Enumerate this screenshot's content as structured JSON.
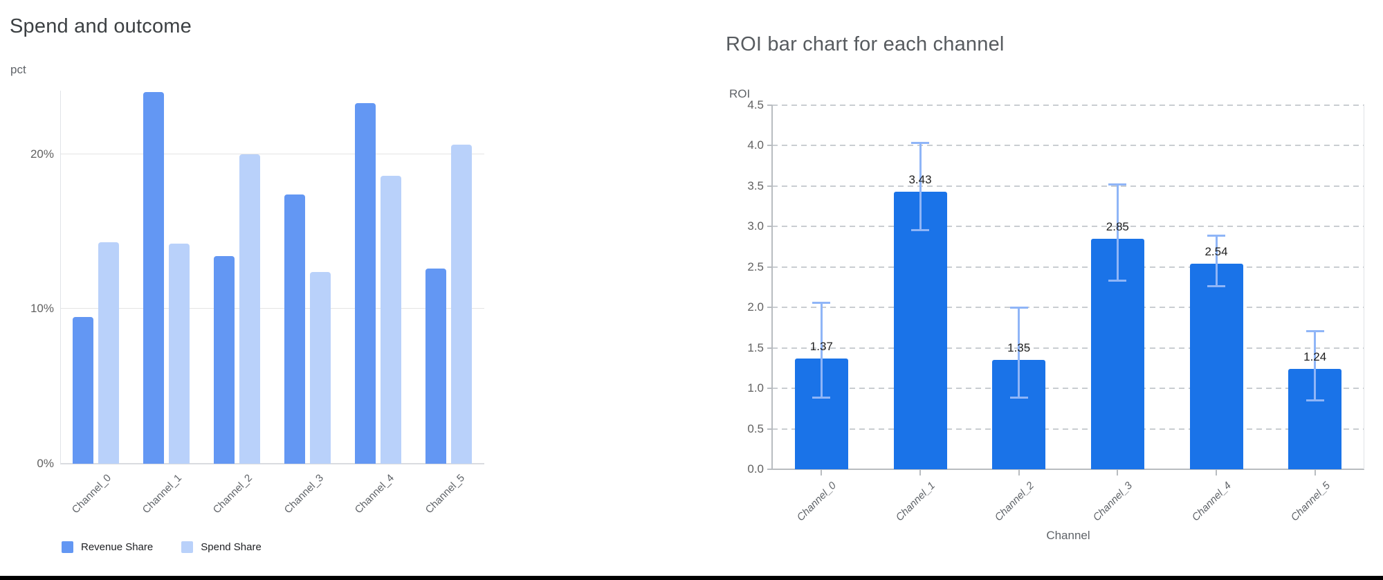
{
  "chart_data": [
    {
      "type": "bar",
      "title": "Spend and outcome",
      "ylabel": "pct",
      "xlabel": "",
      "categories": [
        "Channel_0",
        "Channel_1",
        "Channel_2",
        "Channel_3",
        "Channel_4",
        "Channel_5"
      ],
      "series": [
        {
          "name": "Revenue Share",
          "color": "#6397f3",
          "values": [
            9.5,
            24.0,
            13.4,
            17.4,
            23.3,
            12.6
          ]
        },
        {
          "name": "Spend Share",
          "color": "#b9d1fa",
          "values": [
            14.3,
            14.2,
            20.0,
            12.4,
            18.6,
            20.6
          ]
        }
      ],
      "y_ticks": [
        "0%",
        "10%",
        "20%"
      ],
      "y_tick_values": [
        0,
        10,
        20
      ],
      "ylim": [
        0,
        24.1
      ],
      "grid": "horizontal-solid",
      "legend_position": "bottom-left"
    },
    {
      "type": "bar",
      "title": "ROI bar chart for each channel",
      "ylabel": "ROI",
      "xlabel": "Channel",
      "categories": [
        "Channel_0",
        "Channel_1",
        "Channel_2",
        "Channel_3",
        "Channel_4",
        "Channel_5"
      ],
      "series": [
        {
          "name": "ROI",
          "color": "#1a73e8",
          "values": [
            1.37,
            3.43,
            1.35,
            2.85,
            2.54,
            1.24
          ]
        }
      ],
      "data_labels": [
        "1.37",
        "3.43",
        "1.35",
        "2.85",
        "2.54",
        "1.24"
      ],
      "error_bars": {
        "color": "#8fb5f7",
        "low": [
          0.88,
          2.95,
          0.88,
          2.33,
          2.26,
          0.85
        ],
        "high": [
          2.05,
          4.03,
          1.99,
          3.52,
          2.88,
          1.7
        ]
      },
      "y_ticks": [
        "0.0",
        "0.5",
        "1.0",
        "1.5",
        "2.0",
        "2.5",
        "3.0",
        "3.5",
        "4.0",
        "4.5"
      ],
      "y_tick_values": [
        0,
        0.5,
        1.0,
        1.5,
        2.0,
        2.5,
        3.0,
        3.5,
        4.0,
        4.5
      ],
      "ylim": [
        0,
        4.5
      ],
      "grid": "horizontal-dashed",
      "legend_position": "none"
    }
  ]
}
